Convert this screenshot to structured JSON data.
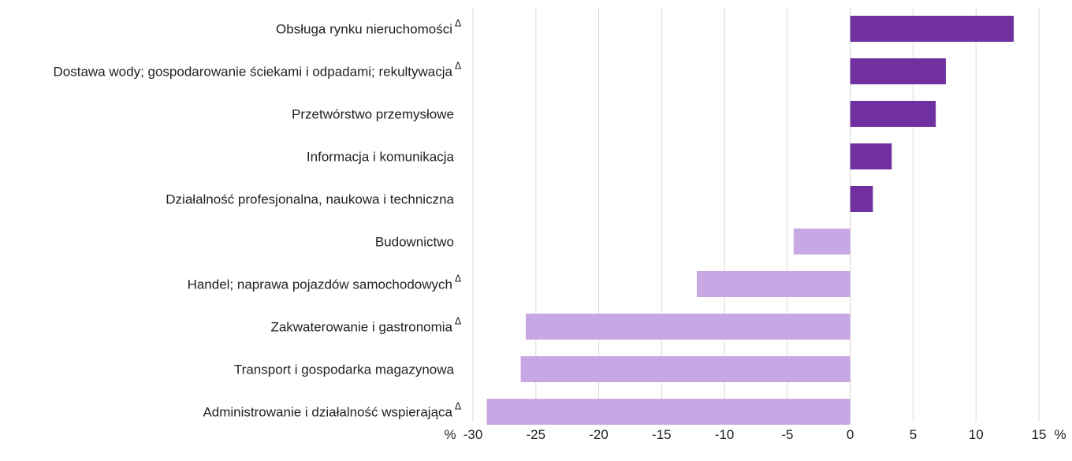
{
  "chart_data": {
    "type": "bar",
    "orientation": "horizontal",
    "categories": [
      "Obsługa rynku nieruchomości",
      "Dostawa wody; gospodarowanie ściekami i odpadami; rekultywacja",
      "Przetwórstwo przemysłowe",
      "Informacja i komunikacja",
      "Działalność profesjonalna, naukowa i techniczna",
      "Budownictwo",
      "Handel; naprawa pojazdów samochodowych",
      "Zakwaterowanie i gastronomia",
      "Transport i gospodarka magazynowa",
      "Administrowanie i działalność wspierająca"
    ],
    "delta_marks": [
      true,
      true,
      false,
      false,
      false,
      false,
      true,
      true,
      false,
      true
    ],
    "delta_symbol": "Δ",
    "values": [
      13.0,
      7.6,
      6.8,
      3.3,
      1.8,
      -4.5,
      -12.2,
      -25.8,
      -26.2,
      -28.9
    ],
    "xlim": [
      -30,
      15
    ],
    "xticks": [
      -30,
      -25,
      -20,
      -15,
      -10,
      -5,
      0,
      5,
      10,
      15
    ],
    "xunit_left": "%",
    "xunit_right": "%",
    "grid": true,
    "colors": {
      "positive": "#7030a0",
      "negative": "#c8a8e4",
      "grid": "#d9d9d9"
    }
  }
}
